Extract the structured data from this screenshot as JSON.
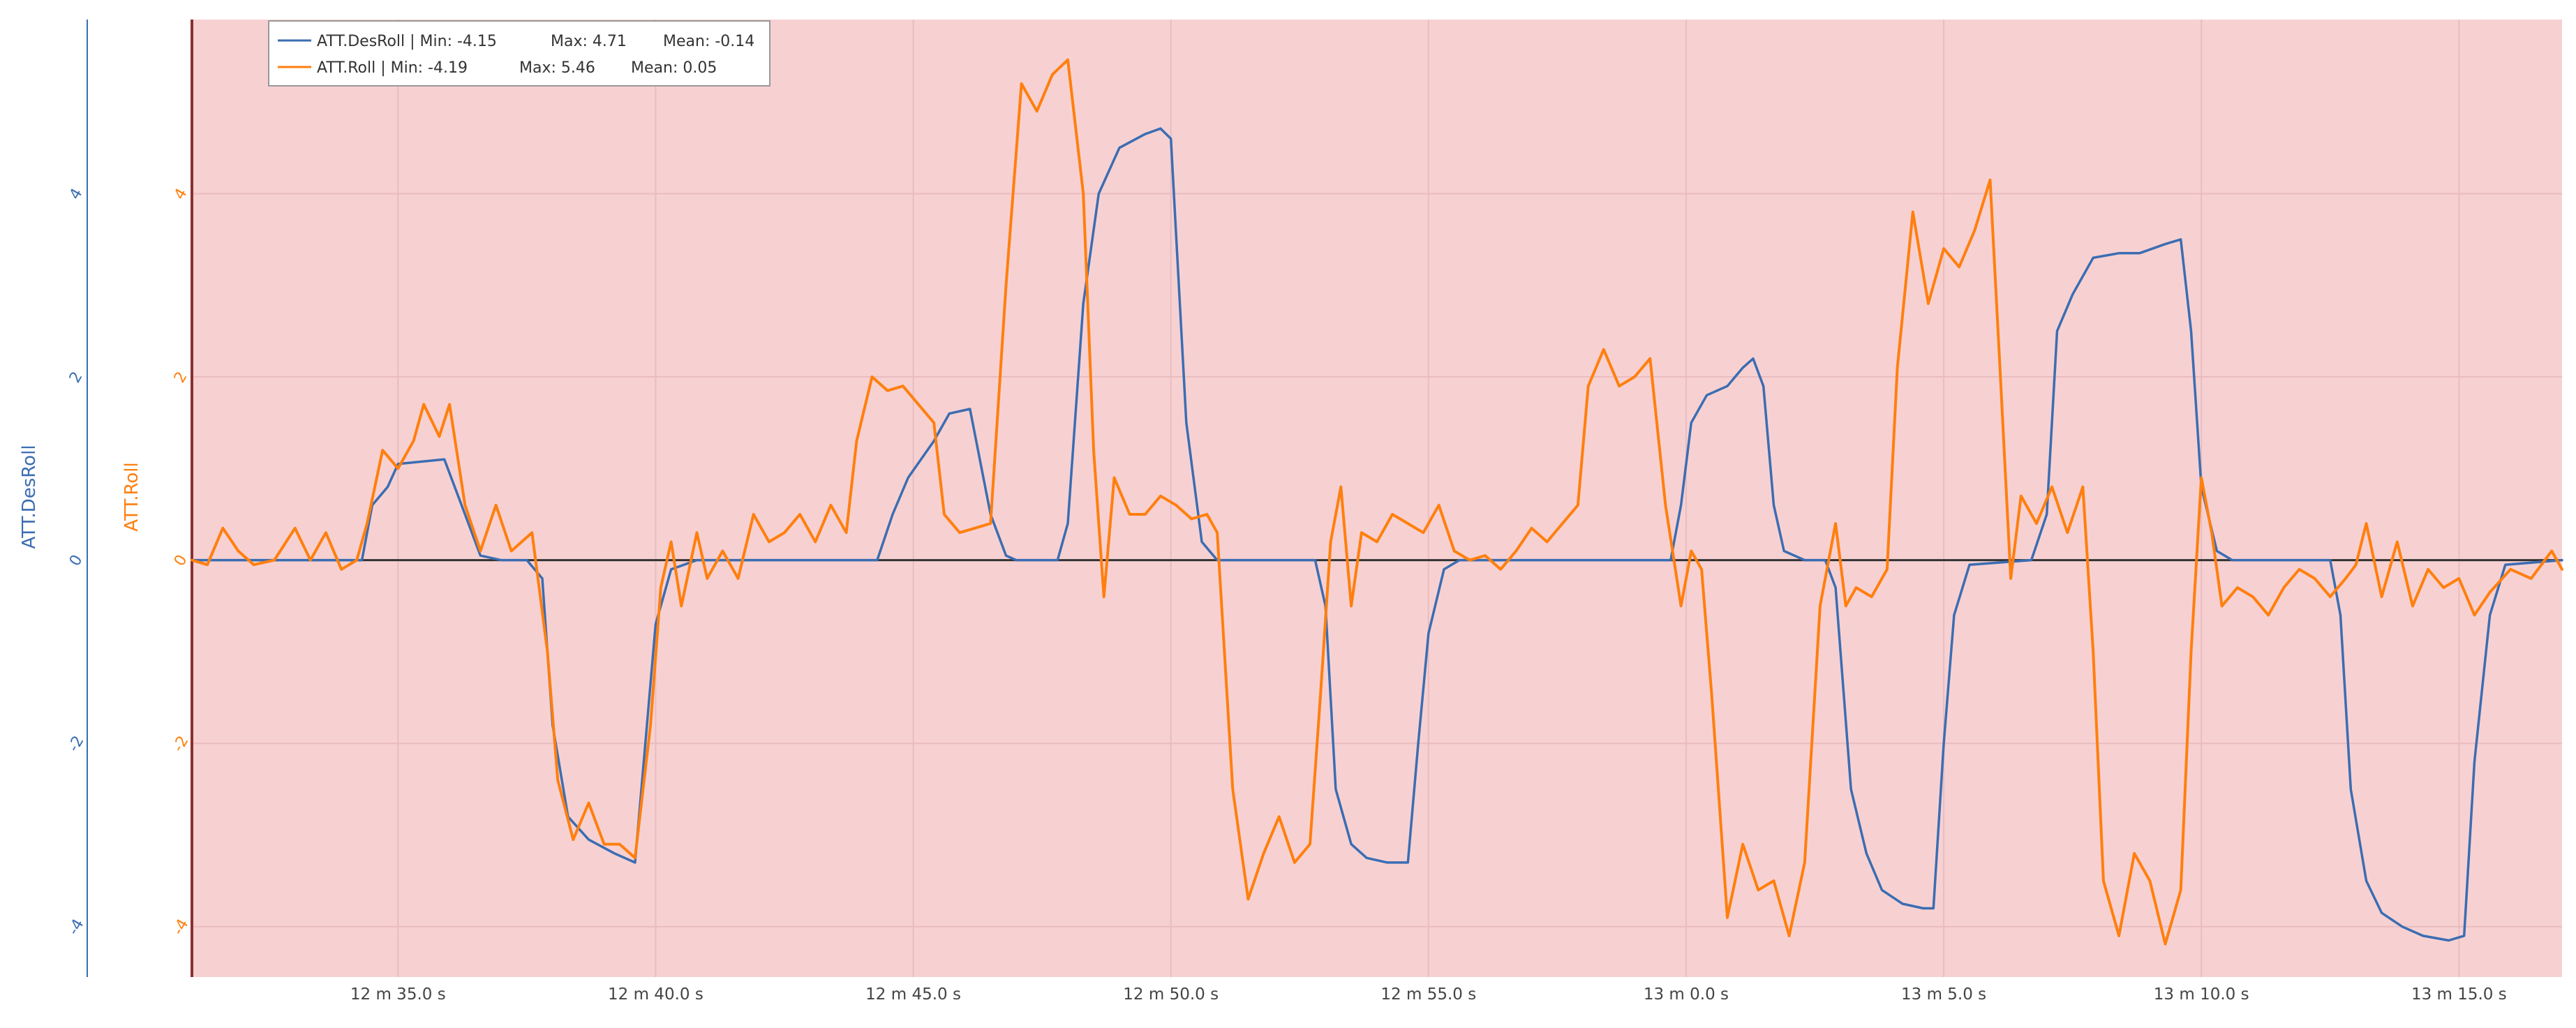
{
  "colors": {
    "des": "#3b6db2",
    "roll": "#ff7f0e",
    "plot_bg": "#f7d1d2",
    "zero_line": "#333333",
    "grid": "#e9bcbf"
  },
  "chart_data": {
    "type": "line",
    "xlim": [
      2311,
      2357
    ],
    "ylim": [
      -4.55,
      5.9
    ],
    "grid": true,
    "legend_position": "top-left",
    "x_ticks": [
      2315,
      2320,
      2325,
      2330,
      2335,
      2340,
      2345,
      2350,
      2355
    ],
    "x_tick_labels": [
      "12 m 35.0 s",
      "12 m 40.0 s",
      "12 m 45.0 s",
      "12 m 50.0 s",
      "12 m 55.0 s",
      "13 m 0.0 s",
      "13 m 5.0 s",
      "13 m 10.0 s",
      "13 m 15.0 s"
    ],
    "y_ticks": [
      4,
      2,
      0,
      -2,
      -4
    ],
    "y_tick_labels": [
      "4",
      "2",
      "0",
      "-2",
      "-4"
    ],
    "y_axes": [
      {
        "label": "ATT.DesRoll",
        "color": "#3b6db2"
      },
      {
        "label": "ATT.Roll",
        "color": "#ff7f0e"
      }
    ],
    "series": [
      {
        "name": "ATT.DesRoll",
        "legend_prefix": "ATT.DesRoll | Min: -4.15",
        "legend_max": "Max: 4.71",
        "legend_mean": "Mean: -0.14",
        "color": "#3b6db2",
        "points": [
          [
            2311.0,
            0
          ],
          [
            2314.3,
            0
          ],
          [
            2314.5,
            0.6
          ],
          [
            2314.8,
            0.8
          ],
          [
            2315.0,
            1.05
          ],
          [
            2315.9,
            1.1
          ],
          [
            2316.3,
            0.5
          ],
          [
            2316.6,
            0.05
          ],
          [
            2317.0,
            0
          ],
          [
            2317.5,
            0
          ],
          [
            2317.8,
            -0.2
          ],
          [
            2318.0,
            -1.8
          ],
          [
            2318.3,
            -2.8
          ],
          [
            2318.7,
            -3.05
          ],
          [
            2319.2,
            -3.2
          ],
          [
            2319.6,
            -3.3
          ],
          [
            2319.8,
            -2.0
          ],
          [
            2320.0,
            -0.7
          ],
          [
            2320.3,
            -0.1
          ],
          [
            2320.8,
            0
          ],
          [
            2324.3,
            0
          ],
          [
            2324.6,
            0.5
          ],
          [
            2324.9,
            0.9
          ],
          [
            2325.4,
            1.3
          ],
          [
            2325.7,
            1.6
          ],
          [
            2326.1,
            1.65
          ],
          [
            2326.5,
            0.5
          ],
          [
            2326.8,
            0.05
          ],
          [
            2327.0,
            0
          ],
          [
            2327.8,
            0
          ],
          [
            2328.0,
            0.4
          ],
          [
            2328.3,
            2.8
          ],
          [
            2328.6,
            4.0
          ],
          [
            2329.0,
            4.5
          ],
          [
            2329.5,
            4.65
          ],
          [
            2329.8,
            4.71
          ],
          [
            2330.0,
            4.6
          ],
          [
            2330.3,
            1.5
          ],
          [
            2330.6,
            0.2
          ],
          [
            2330.9,
            0
          ],
          [
            2332.8,
            0
          ],
          [
            2333.0,
            -0.5
          ],
          [
            2333.2,
            -2.5
          ],
          [
            2333.5,
            -3.1
          ],
          [
            2333.8,
            -3.25
          ],
          [
            2334.2,
            -3.3
          ],
          [
            2334.6,
            -3.3
          ],
          [
            2334.8,
            -2.0
          ],
          [
            2335.0,
            -0.8
          ],
          [
            2335.3,
            -0.1
          ],
          [
            2335.6,
            0
          ],
          [
            2339.7,
            0
          ],
          [
            2339.9,
            0.6
          ],
          [
            2340.1,
            1.5
          ],
          [
            2340.4,
            1.8
          ],
          [
            2340.8,
            1.9
          ],
          [
            2341.1,
            2.1
          ],
          [
            2341.3,
            2.2
          ],
          [
            2341.5,
            1.9
          ],
          [
            2341.7,
            0.6
          ],
          [
            2341.9,
            0.1
          ],
          [
            2342.3,
            0
          ],
          [
            2342.7,
            0
          ],
          [
            2342.9,
            -0.3
          ],
          [
            2343.2,
            -2.5
          ],
          [
            2343.5,
            -3.2
          ],
          [
            2343.8,
            -3.6
          ],
          [
            2344.2,
            -3.75
          ],
          [
            2344.6,
            -3.8
          ],
          [
            2344.8,
            -3.8
          ],
          [
            2345.0,
            -2.0
          ],
          [
            2345.2,
            -0.6
          ],
          [
            2345.5,
            -0.05
          ],
          [
            2346.7,
            0
          ],
          [
            2347.0,
            0.5
          ],
          [
            2347.2,
            2.5
          ],
          [
            2347.5,
            2.9
          ],
          [
            2347.9,
            3.3
          ],
          [
            2348.4,
            3.35
          ],
          [
            2348.8,
            3.35
          ],
          [
            2349.3,
            3.45
          ],
          [
            2349.6,
            3.5
          ],
          [
            2349.8,
            2.5
          ],
          [
            2350.0,
            0.8
          ],
          [
            2350.3,
            0.1
          ],
          [
            2350.6,
            0
          ],
          [
            2352.5,
            0
          ],
          [
            2352.7,
            -0.6
          ],
          [
            2352.9,
            -2.5
          ],
          [
            2353.2,
            -3.5
          ],
          [
            2353.5,
            -3.85
          ],
          [
            2353.9,
            -4.0
          ],
          [
            2354.3,
            -4.1
          ],
          [
            2354.8,
            -4.15
          ],
          [
            2355.1,
            -4.1
          ],
          [
            2355.3,
            -2.2
          ],
          [
            2355.6,
            -0.6
          ],
          [
            2355.9,
            -0.05
          ],
          [
            2357.0,
            0
          ]
        ]
      },
      {
        "name": "ATT.Roll",
        "legend_prefix": "ATT.Roll | Min: -4.19",
        "legend_max": "Max: 5.46",
        "legend_mean": "Mean: 0.05",
        "color": "#ff7f0e",
        "points": [
          [
            2311.0,
            0
          ],
          [
            2311.3,
            -0.05
          ],
          [
            2311.6,
            0.35
          ],
          [
            2311.9,
            0.1
          ],
          [
            2312.2,
            -0.05
          ],
          [
            2312.6,
            0
          ],
          [
            2313.0,
            0.35
          ],
          [
            2313.3,
            0
          ],
          [
            2313.6,
            0.3
          ],
          [
            2313.9,
            -0.1
          ],
          [
            2314.2,
            0
          ],
          [
            2314.4,
            0.4
          ],
          [
            2314.7,
            1.2
          ],
          [
            2315.0,
            1.0
          ],
          [
            2315.3,
            1.3
          ],
          [
            2315.5,
            1.7
          ],
          [
            2315.8,
            1.35
          ],
          [
            2316.0,
            1.7
          ],
          [
            2316.3,
            0.6
          ],
          [
            2316.6,
            0.1
          ],
          [
            2316.9,
            0.6
          ],
          [
            2317.2,
            0.1
          ],
          [
            2317.6,
            0.3
          ],
          [
            2317.9,
            -1.0
          ],
          [
            2318.1,
            -2.4
          ],
          [
            2318.4,
            -3.05
          ],
          [
            2318.7,
            -2.65
          ],
          [
            2319.0,
            -3.1
          ],
          [
            2319.3,
            -3.1
          ],
          [
            2319.6,
            -3.25
          ],
          [
            2319.9,
            -1.8
          ],
          [
            2320.1,
            -0.3
          ],
          [
            2320.3,
            0.2
          ],
          [
            2320.5,
            -0.5
          ],
          [
            2320.8,
            0.3
          ],
          [
            2321.0,
            -0.2
          ],
          [
            2321.3,
            0.1
          ],
          [
            2321.6,
            -0.2
          ],
          [
            2321.9,
            0.5
          ],
          [
            2322.2,
            0.2
          ],
          [
            2322.5,
            0.3
          ],
          [
            2322.8,
            0.5
          ],
          [
            2323.1,
            0.2
          ],
          [
            2323.4,
            0.6
          ],
          [
            2323.7,
            0.3
          ],
          [
            2323.9,
            1.3
          ],
          [
            2324.2,
            2.0
          ],
          [
            2324.5,
            1.85
          ],
          [
            2324.8,
            1.9
          ],
          [
            2325.1,
            1.7
          ],
          [
            2325.4,
            1.5
          ],
          [
            2325.6,
            0.5
          ],
          [
            2325.9,
            0.3
          ],
          [
            2326.2,
            0.35
          ],
          [
            2326.5,
            0.4
          ],
          [
            2326.8,
            3.0
          ],
          [
            2327.1,
            5.2
          ],
          [
            2327.4,
            4.9
          ],
          [
            2327.7,
            5.3
          ],
          [
            2328.0,
            5.46
          ],
          [
            2328.3,
            4.0
          ],
          [
            2328.5,
            1.2
          ],
          [
            2328.7,
            -0.4
          ],
          [
            2328.9,
            0.9
          ],
          [
            2329.2,
            0.5
          ],
          [
            2329.5,
            0.5
          ],
          [
            2329.8,
            0.7
          ],
          [
            2330.1,
            0.6
          ],
          [
            2330.4,
            0.45
          ],
          [
            2330.7,
            0.5
          ],
          [
            2330.9,
            0.3
          ],
          [
            2331.2,
            -2.5
          ],
          [
            2331.5,
            -3.7
          ],
          [
            2331.8,
            -3.2
          ],
          [
            2332.1,
            -2.8
          ],
          [
            2332.4,
            -3.3
          ],
          [
            2332.7,
            -3.1
          ],
          [
            2332.9,
            -1.5
          ],
          [
            2333.1,
            0.2
          ],
          [
            2333.3,
            0.8
          ],
          [
            2333.5,
            -0.5
          ],
          [
            2333.7,
            0.3
          ],
          [
            2334.0,
            0.2
          ],
          [
            2334.3,
            0.5
          ],
          [
            2334.6,
            0.4
          ],
          [
            2334.9,
            0.3
          ],
          [
            2335.2,
            0.6
          ],
          [
            2335.5,
            0.1
          ],
          [
            2335.8,
            0
          ],
          [
            2336.1,
            0.05
          ],
          [
            2336.4,
            -0.1
          ],
          [
            2336.7,
            0.1
          ],
          [
            2337.0,
            0.35
          ],
          [
            2337.3,
            0.2
          ],
          [
            2337.6,
            0.4
          ],
          [
            2337.9,
            0.6
          ],
          [
            2338.1,
            1.9
          ],
          [
            2338.4,
            2.3
          ],
          [
            2338.7,
            1.9
          ],
          [
            2339.0,
            2.0
          ],
          [
            2339.3,
            2.2
          ],
          [
            2339.6,
            0.6
          ],
          [
            2339.9,
            -0.5
          ],
          [
            2340.1,
            0.1
          ],
          [
            2340.3,
            -0.1
          ],
          [
            2340.5,
            -1.5
          ],
          [
            2340.8,
            -3.9
          ],
          [
            2341.1,
            -3.1
          ],
          [
            2341.4,
            -3.6
          ],
          [
            2341.7,
            -3.5
          ],
          [
            2342.0,
            -4.1
          ],
          [
            2342.3,
            -3.3
          ],
          [
            2342.6,
            -0.5
          ],
          [
            2342.9,
            0.4
          ],
          [
            2343.1,
            -0.5
          ],
          [
            2343.3,
            -0.3
          ],
          [
            2343.6,
            -0.4
          ],
          [
            2343.9,
            -0.1
          ],
          [
            2344.1,
            2.1
          ],
          [
            2344.4,
            3.8
          ],
          [
            2344.7,
            2.8
          ],
          [
            2345.0,
            3.4
          ],
          [
            2345.3,
            3.2
          ],
          [
            2345.6,
            3.6
          ],
          [
            2345.9,
            4.15
          ],
          [
            2346.1,
            2.0
          ],
          [
            2346.3,
            -0.2
          ],
          [
            2346.5,
            0.7
          ],
          [
            2346.8,
            0.4
          ],
          [
            2347.1,
            0.8
          ],
          [
            2347.4,
            0.3
          ],
          [
            2347.7,
            0.8
          ],
          [
            2347.9,
            -1.0
          ],
          [
            2348.1,
            -3.5
          ],
          [
            2348.4,
            -4.1
          ],
          [
            2348.7,
            -3.2
          ],
          [
            2349.0,
            -3.5
          ],
          [
            2349.3,
            -4.19
          ],
          [
            2349.6,
            -3.6
          ],
          [
            2349.8,
            -1.0
          ],
          [
            2350.0,
            0.9
          ],
          [
            2350.2,
            0.3
          ],
          [
            2350.4,
            -0.5
          ],
          [
            2350.7,
            -0.3
          ],
          [
            2351.0,
            -0.4
          ],
          [
            2351.3,
            -0.6
          ],
          [
            2351.6,
            -0.3
          ],
          [
            2351.9,
            -0.1
          ],
          [
            2352.2,
            -0.2
          ],
          [
            2352.5,
            -0.4
          ],
          [
            2352.8,
            -0.2
          ],
          [
            2353.0,
            -0.05
          ],
          [
            2353.2,
            0.4
          ],
          [
            2353.5,
            -0.4
          ],
          [
            2353.8,
            0.2
          ],
          [
            2354.1,
            -0.5
          ],
          [
            2354.4,
            -0.1
          ],
          [
            2354.7,
            -0.3
          ],
          [
            2355.0,
            -0.2
          ],
          [
            2355.3,
            -0.6
          ],
          [
            2355.6,
            -0.35
          ],
          [
            2356.0,
            -0.1
          ],
          [
            2356.4,
            -0.2
          ],
          [
            2356.8,
            0.1
          ],
          [
            2357.0,
            -0.1
          ]
        ]
      }
    ]
  }
}
